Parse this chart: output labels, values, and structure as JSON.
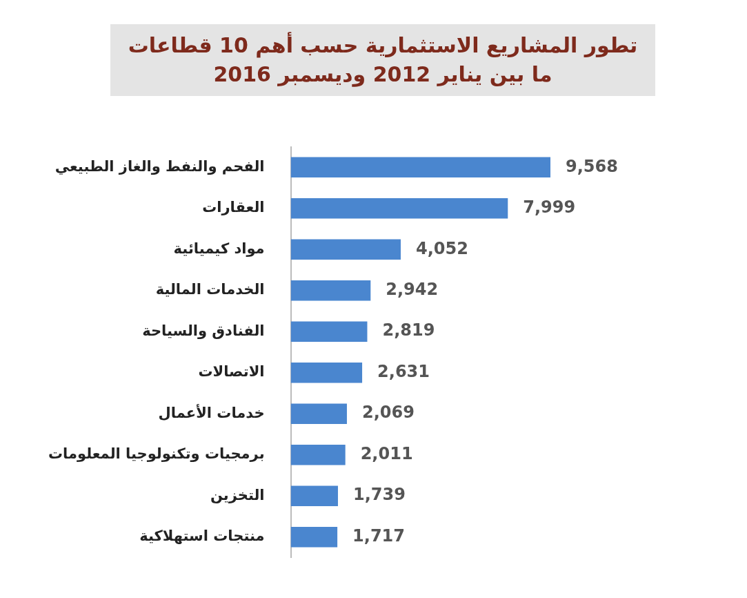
{
  "chart_data": {
    "type": "bar",
    "orientation": "horizontal",
    "title": "تطور المشاريع الاستثمارية حسب أهم 10 قطاعات ما بين يناير 2012 وديسمبر 2016",
    "categories": [
      "الفحم والنفط والغاز الطبيعي",
      "العقارات",
      "مواد كيميائية",
      "الخدمات المالية",
      "الفنادق والسياحة",
      "الاتصالات",
      "خدمات الأعمال",
      "برمجيات وتكنولوجيا المعلومات",
      "التخزين",
      "منتجات استهلاكية"
    ],
    "values": [
      9568,
      7999,
      4052,
      2942,
      2819,
      2631,
      2069,
      2011,
      1739,
      1717
    ],
    "value_labels": [
      "9,568",
      "7,999",
      "4,052",
      "2,942",
      "2,819",
      "2,631",
      "2,069",
      "2,011",
      "1,739",
      "1,717"
    ],
    "color": "#4a86cf",
    "tick_labels": "y",
    "legend": false
  }
}
